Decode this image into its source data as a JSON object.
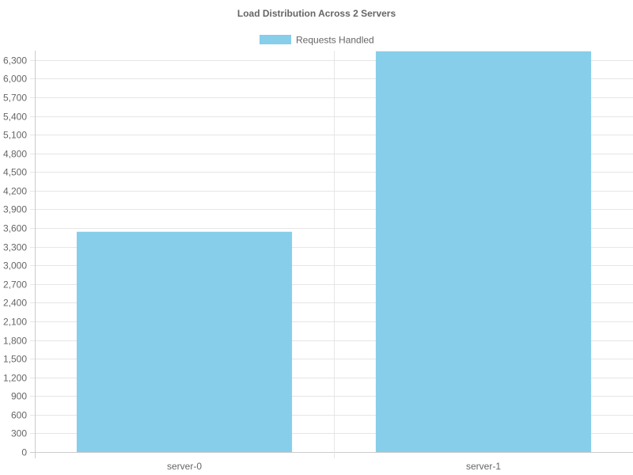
{
  "chart_data": {
    "type": "bar",
    "title": "Load Distribution Across 2 Servers",
    "categories": [
      "server-0",
      "server-1"
    ],
    "series": [
      {
        "name": "Requests Handled",
        "values": [
          3540,
          6440
        ],
        "color": "#87CEEB"
      }
    ],
    "xlabel": "",
    "ylabel": "",
    "ylim": [
      0,
      6450
    ],
    "yticks": [
      0,
      300,
      600,
      900,
      1200,
      1500,
      1800,
      2100,
      2400,
      2700,
      3000,
      3300,
      3600,
      3900,
      4200,
      4500,
      4800,
      5100,
      5400,
      5700,
      6000,
      6300
    ],
    "ytick_labels": [
      "0",
      "300",
      "600",
      "900",
      "1,200",
      "1,500",
      "1,800",
      "2,100",
      "2,400",
      "2,700",
      "3,000",
      "3,300",
      "3,600",
      "3,900",
      "4,200",
      "4,500",
      "4,800",
      "5,100",
      "5,400",
      "5,700",
      "6,000",
      "6,300"
    ],
    "grid": true,
    "legend_position": "top-center",
    "colors": {
      "grid": "#e6e6e6",
      "axis": "#cccccc",
      "text": "#666666"
    }
  }
}
